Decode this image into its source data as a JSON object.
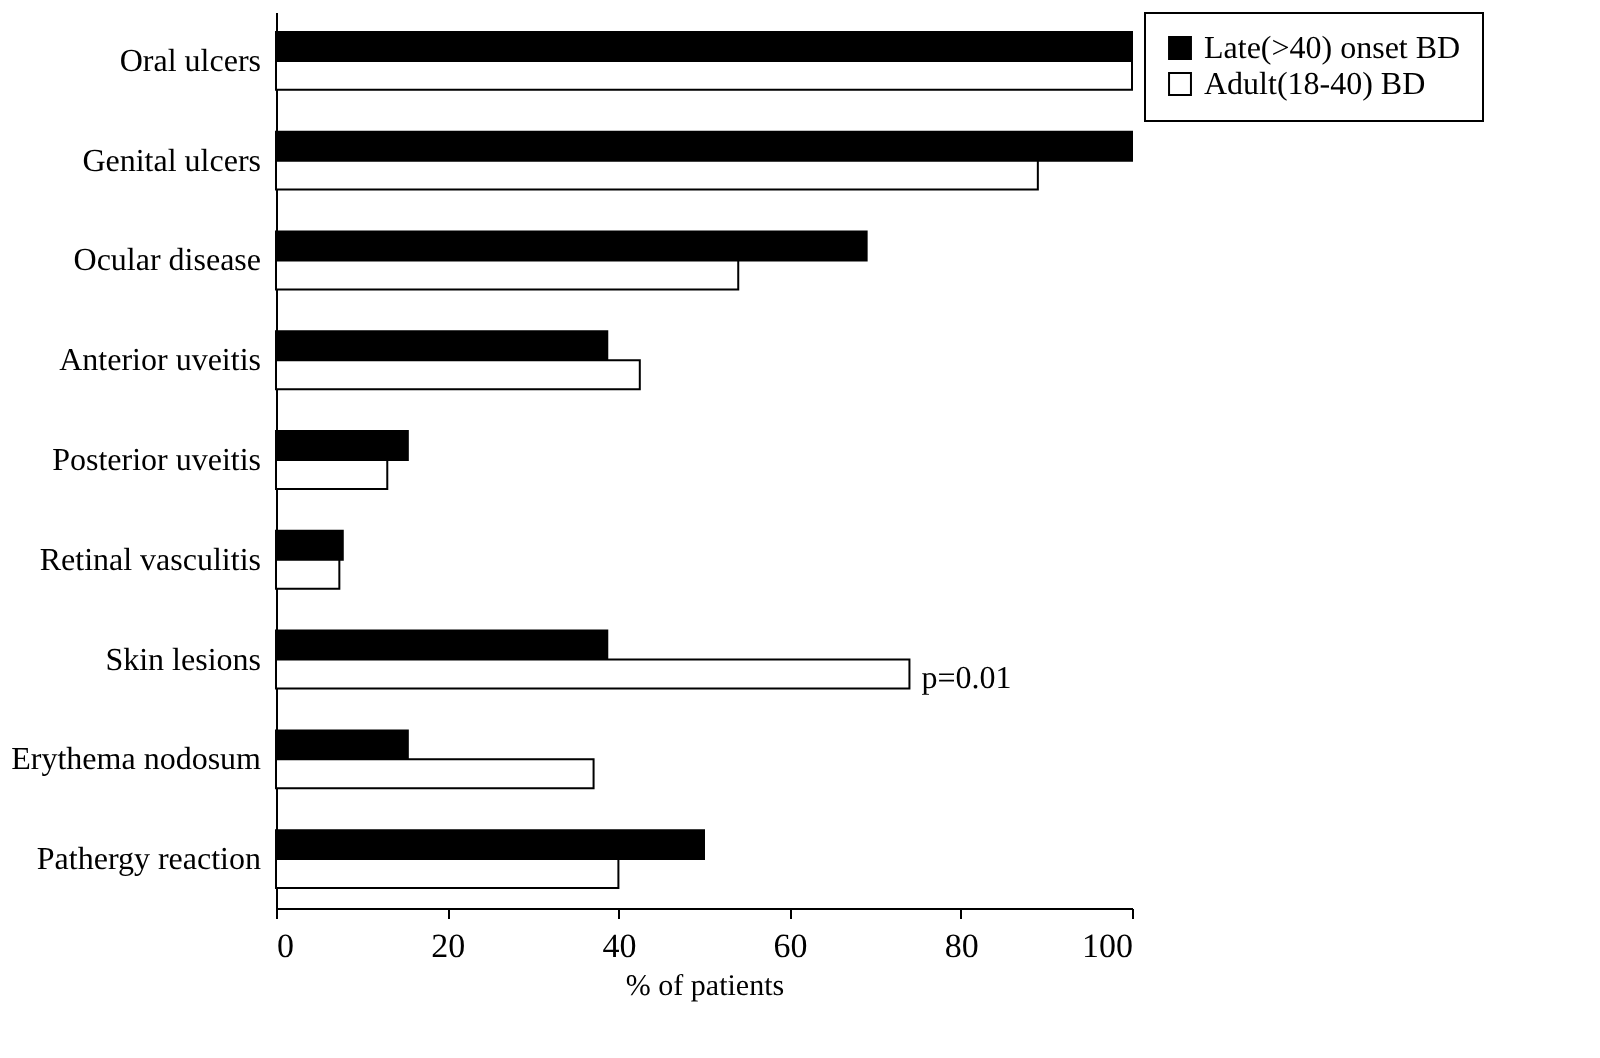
{
  "chart_data": {
    "type": "bar",
    "orientation": "horizontal",
    "xlabel": "% of patients",
    "categories": [
      "Oral ulcers",
      "Genital ulcers",
      "Ocular disease",
      "Anterior uveitis",
      "Posterior uveitis",
      "Retinal vasculitis",
      "Skin lesions",
      "Erythema nodosum",
      "Pathergy reaction"
    ],
    "series": [
      {
        "name": "Late(>40) onset BD",
        "color": "#000000",
        "values": [
          100,
          100,
          69,
          38.7,
          15.4,
          7.8,
          38.7,
          15.4,
          50
        ]
      },
      {
        "name": "Adult(18-40) BD",
        "color": "#ffffff",
        "values": [
          100,
          89,
          54,
          42.5,
          13,
          7.4,
          74,
          37.1,
          40
        ]
      }
    ],
    "xlim": [
      0,
      100
    ],
    "xticks": [
      0,
      20,
      40,
      60,
      80,
      100
    ],
    "grid": false,
    "legend": "right",
    "annotations": [
      {
        "text": "p=0.01",
        "x": 74,
        "y": "Skin lesions"
      }
    ]
  }
}
